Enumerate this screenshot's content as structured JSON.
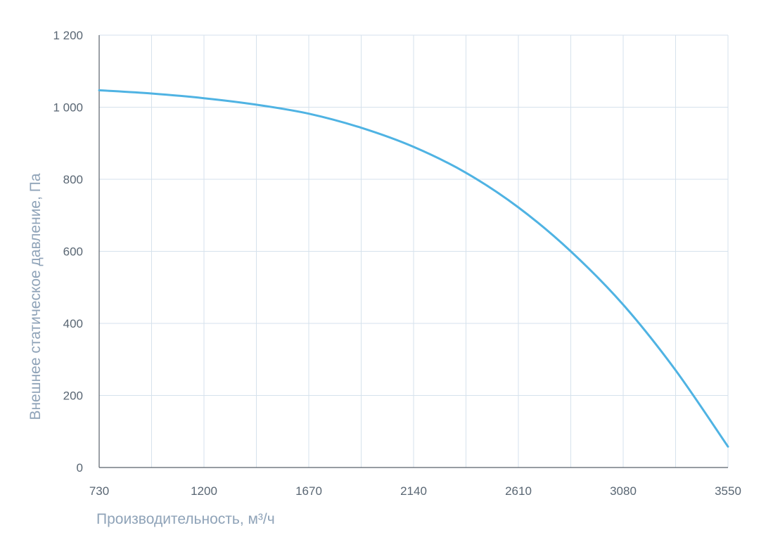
{
  "chart_data": {
    "type": "line",
    "title": "",
    "xlabel": "Производительность, м³/ч",
    "ylabel": "Внешнее статическое давление, Па",
    "xlim": [
      730,
      3550
    ],
    "ylim": [
      0,
      1200
    ],
    "x_tick_labels": [
      "730",
      "1200",
      "1670",
      "2140",
      "2610",
      "3080",
      "3550"
    ],
    "y_tick_labels": [
      "0",
      "200",
      "400",
      "600",
      "800",
      "1 000",
      "1 200"
    ],
    "grid": true,
    "series": [
      {
        "color": "#4fb3e3",
        "x": [
          730,
          965,
          1200,
          1435,
          1670,
          1905,
          2140,
          2375,
          2610,
          2845,
          3080,
          3315,
          3550
        ],
        "y": [
          1047,
          1038,
          1025,
          1007,
          982,
          943,
          890,
          818,
          722,
          600,
          452,
          270,
          58
        ]
      }
    ]
  }
}
